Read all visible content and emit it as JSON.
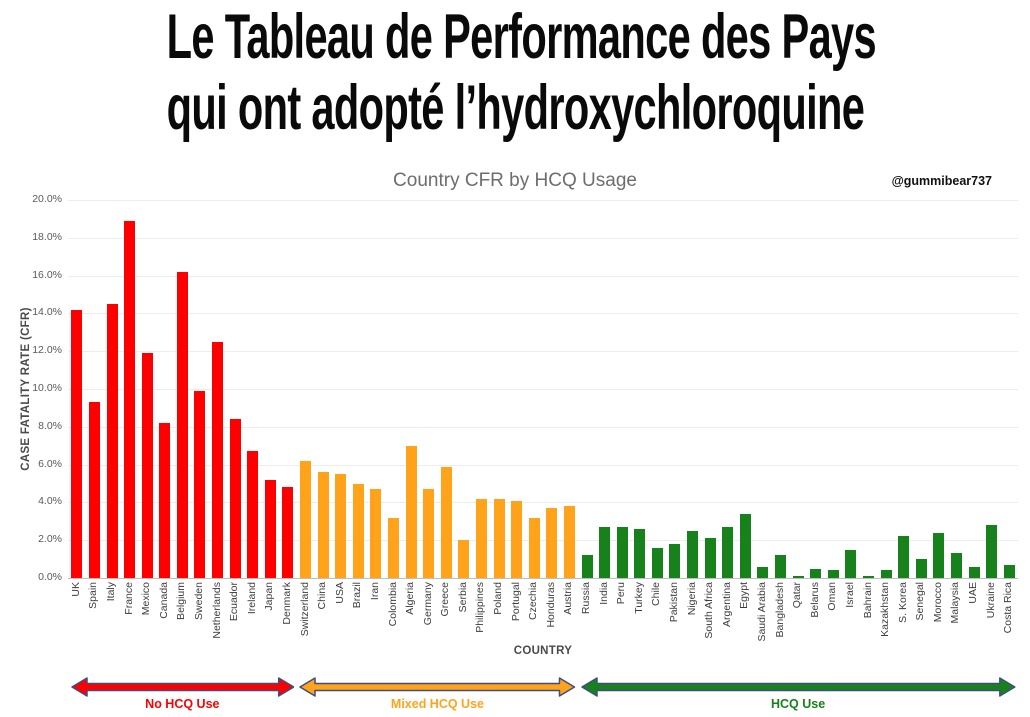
{
  "page": {
    "title_line1": "Le Tableau de Performance des Pays",
    "title_line2": "qui ont adopté l’hydroxychloroquine",
    "watermark": "@gummibear737"
  },
  "chart_data": {
    "type": "bar",
    "title": "Country CFR by HCQ Usage",
    "xlabel": "COUNTRY",
    "ylabel": "CASE FATALITY RATE (CFR)",
    "ylim": [
      0,
      20
    ],
    "grid": true,
    "yticks": [
      "0.0%",
      "2.0%",
      "4.0%",
      "6.0%",
      "8.0%",
      "10.0%",
      "12.0%",
      "14.0%",
      "16.0%",
      "18.0%",
      "20.0%"
    ],
    "arrow_outline_color": "#3d4e81",
    "groups": [
      {
        "name": "No HCQ Use",
        "color": "#fe0000",
        "countries": [
          "UK",
          "Spain",
          "Italy",
          "France",
          "Mexico",
          "Canada",
          "Belgium",
          "Sweden",
          "Netherlands",
          "Ecuador",
          "Ireland",
          "Japan",
          "Denmark"
        ],
        "values": [
          14.2,
          9.3,
          14.5,
          18.9,
          11.9,
          8.2,
          16.2,
          9.9,
          12.5,
          8.4,
          6.7,
          5.2,
          4.8
        ]
      },
      {
        "name": "Mixed HCQ Use",
        "color": "#ffa31a",
        "countries": [
          "Switzerland",
          "China",
          "USA",
          "Brazil",
          "Iran",
          "Colombia",
          "Algeria",
          "Germany",
          "Greece",
          "Serbia",
          "Philippines",
          "Poland",
          "Portugal",
          "Czechia",
          "Honduras",
          "Austria"
        ],
        "values": [
          6.2,
          5.6,
          5.5,
          5.0,
          4.7,
          3.2,
          7.0,
          4.7,
          5.9,
          2.0,
          4.2,
          4.2,
          4.1,
          3.2,
          3.7,
          3.8
        ]
      },
      {
        "name": "HCQ Use",
        "color": "#17821c",
        "countries": [
          "Russia",
          "India",
          "Peru",
          "Turkey",
          "Chile",
          "Pakistan",
          "Nigeria",
          "South Africa",
          "Argentina",
          "Egypt",
          "Saudi Arabia",
          "Bangladesh",
          "Qatar",
          "Belarus",
          "Oman",
          "Israel",
          "Bahrain",
          "Kazakhstan",
          "S. Korea",
          "Senegal",
          "Morocco",
          "Malaysia",
          "UAE",
          "Ukraine",
          "Costa Rica"
        ],
        "values": [
          1.2,
          2.7,
          2.7,
          2.6,
          1.6,
          1.8,
          2.5,
          2.1,
          2.7,
          3.4,
          0.6,
          1.2,
          0.1,
          0.5,
          0.4,
          1.5,
          0.1,
          0.4,
          2.2,
          1.0,
          2.4,
          1.3,
          0.6,
          2.8,
          0.7
        ]
      }
    ]
  }
}
